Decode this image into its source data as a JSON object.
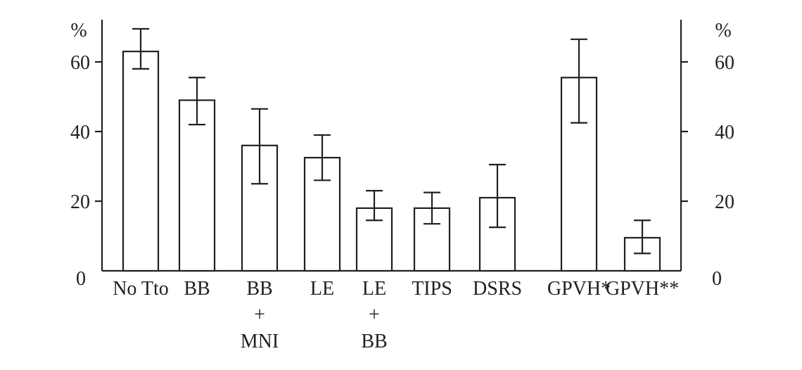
{
  "colors": {
    "ink": "#231f20",
    "bar_fill": "#ffffff",
    "background": "#ffffff"
  },
  "chart_data": {
    "type": "bar",
    "title": "",
    "xlabel": "",
    "ylabel": "%",
    "ylabel_right": "%",
    "ylim": [
      0,
      72
    ],
    "yticks": [
      0,
      20,
      40,
      60
    ],
    "ytick_labels": [
      "0",
      "20",
      "40",
      "60"
    ],
    "right_ytick_labels": [
      "0",
      "20",
      "40",
      "60"
    ],
    "grid": false,
    "legend": "none",
    "error_bars": true,
    "categories": [
      {
        "lines": [
          "No Tto"
        ]
      },
      {
        "lines": [
          "BB"
        ]
      },
      {
        "lines": [
          "BB",
          "+",
          "MNI"
        ]
      },
      {
        "lines": [
          "LE"
        ]
      },
      {
        "lines": [
          "LE",
          "+",
          "BB"
        ]
      },
      {
        "lines": [
          "TIPS"
        ]
      },
      {
        "lines": [
          "DSRS"
        ]
      },
      {
        "lines": [
          "GPVH*"
        ]
      },
      {
        "lines": [
          "GPVH**"
        ]
      }
    ],
    "values": [
      63,
      49,
      36,
      32.5,
      18,
      18,
      21,
      55.5,
      9.5
    ],
    "error_low": [
      58,
      42,
      25,
      26,
      14.5,
      13.5,
      12.5,
      42.5,
      5
    ],
    "error_high": [
      69.5,
      55.5,
      46.5,
      39,
      23,
      22.5,
      30.5,
      66.5,
      14.5
    ]
  }
}
